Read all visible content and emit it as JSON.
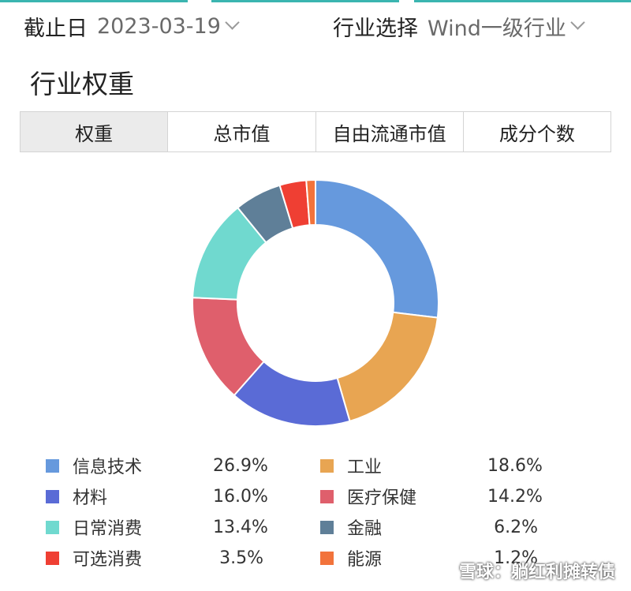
{
  "filters": {
    "date_label": "截止日",
    "date_value": "2023-03-19",
    "industry_label": "行业选择",
    "industry_value": "Wind一级行业"
  },
  "section_title": "行业权重",
  "tabs": [
    {
      "label": "权重",
      "active": true
    },
    {
      "label": "总市值",
      "active": false
    },
    {
      "label": "自由流通市值",
      "active": false
    },
    {
      "label": "成分个数",
      "active": false
    }
  ],
  "chart_data": {
    "type": "pie",
    "donut": true,
    "categories": [
      "信息技术",
      "工业",
      "材料",
      "医疗保健",
      "日常消费",
      "金融",
      "可选消费",
      "能源"
    ],
    "values": [
      26.9,
      18.6,
      16.0,
      14.2,
      13.4,
      6.2,
      3.5,
      1.2
    ],
    "value_labels": [
      "26.9%",
      "18.6%",
      "16.0%",
      "14.2%",
      "13.4%",
      "6.2%",
      "3.5%",
      "1.2%"
    ],
    "colors": [
      "#6699dd",
      "#e8a552",
      "#5a6bd6",
      "#df5f6c",
      "#70d9cf",
      "#5f7f98",
      "#ef3f33",
      "#f2733b"
    ],
    "legend_position": "bottom"
  },
  "watermark": "雪球：躺红利摊转债"
}
